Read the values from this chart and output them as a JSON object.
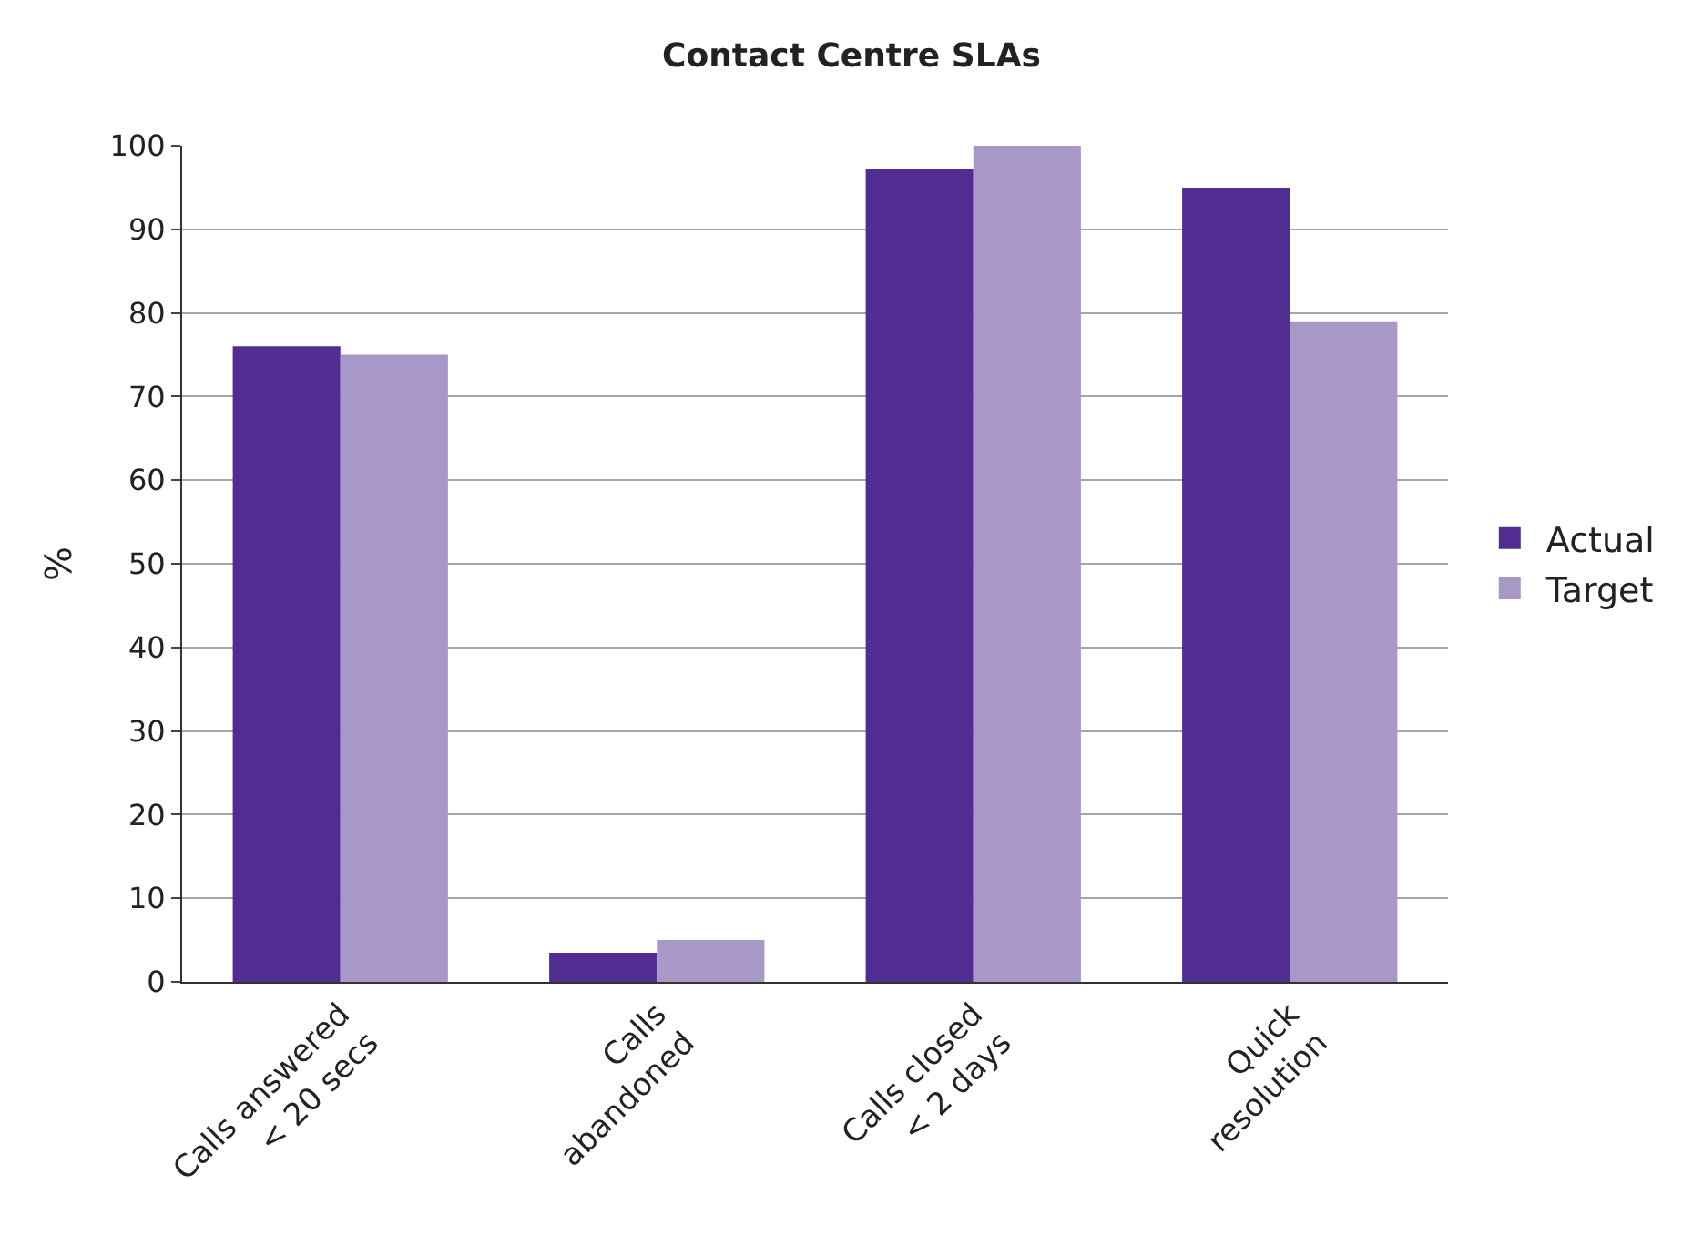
{
  "chart_data": {
    "type": "bar",
    "title": "Contact Centre SLAs",
    "ylabel": "%",
    "categories": [
      "Calls answered\n< 20 secs",
      "Calls\nabandoned",
      "Calls closed\n< 2 days",
      "Quick\nresolution"
    ],
    "series": [
      {
        "name": "Actual",
        "color": "#512d91",
        "values": [
          76,
          3.5,
          97.2,
          95
        ]
      },
      {
        "name": "Target",
        "color": "#a898c8",
        "values": [
          75,
          5,
          100,
          79
        ]
      }
    ],
    "ylim": [
      0,
      100
    ],
    "yticks": [
      0,
      10,
      20,
      30,
      40,
      50,
      60,
      70,
      80,
      90,
      100
    ],
    "grid": "y",
    "legend": "right"
  }
}
